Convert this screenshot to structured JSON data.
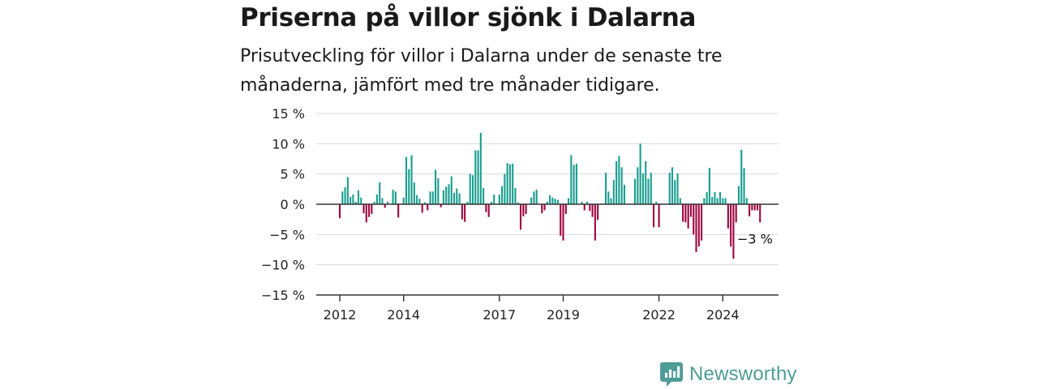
{
  "title": "Priserna på villor sjönk i Dalarna",
  "subtitle": "Prisutveckling för villor i Dalarna under de senaste tre månaderna, jämfört med tre månader tidigare.",
  "brand": {
    "name": "Newsworthy",
    "color": "#4f9c96"
  },
  "chart_data": {
    "type": "bar",
    "ylim": [
      -15,
      15
    ],
    "yticks": [
      15,
      10,
      5,
      0,
      -5,
      -10,
      -15
    ],
    "ytick_labels": [
      "15 %",
      "10 %",
      "5 %",
      "0 %",
      "−5 %",
      "−10 %",
      "−15 %"
    ],
    "xticks": [
      {
        "label": "2012",
        "index": 0
      },
      {
        "label": "2014",
        "index": 24
      },
      {
        "label": "2017",
        "index": 60
      },
      {
        "label": "2019",
        "index": 84
      },
      {
        "label": "2022",
        "index": 120
      },
      {
        "label": "2024",
        "index": 144
      }
    ],
    "start": "2012-01",
    "frequency": "monthly",
    "positive_color": "#1a9e8f",
    "negative_color": "#a0063f",
    "grid": true,
    "end_label": "−3 %",
    "values": [
      -2.3,
      2.1,
      2.8,
      4.5,
      1.2,
      1.6,
      0.4,
      2.3,
      1.1,
      -1.5,
      -3.0,
      -2.1,
      -1.6,
      0.4,
      1.6,
      3.6,
      1.0,
      -0.6,
      0.4,
      0.0,
      2.4,
      2.1,
      -2.2,
      0.0,
      1.1,
      7.8,
      5.8,
      8.1,
      3.6,
      1.5,
      0.9,
      -1.4,
      0.3,
      -1.0,
      2.1,
      2.1,
      5.7,
      4.3,
      -0.5,
      2.3,
      2.9,
      3.3,
      4.6,
      1.9,
      2.6,
      1.8,
      -2.5,
      -2.9,
      0.4,
      5.0,
      4.8,
      8.9,
      8.9,
      11.8,
      2.7,
      -1.3,
      -2.1,
      0.4,
      1.6,
      0.0,
      1.6,
      3.0,
      5.0,
      6.8,
      6.6,
      6.7,
      2.7,
      0.3,
      -4.2,
      -2.0,
      -1.6,
      0.0,
      1.1,
      2.1,
      2.4,
      0.0,
      -1.5,
      -1.0,
      0.4,
      1.5,
      1.1,
      0.9,
      0.7,
      -5.2,
      -6.0,
      -1.6,
      1.0,
      8.1,
      6.5,
      6.7,
      0.0,
      0.4,
      -1.0,
      0.4,
      -1.1,
      -2.1,
      -6.0,
      -2.6,
      0.0,
      0.0,
      5.2,
      2.1,
      1.0,
      4.0,
      7.1,
      8.0,
      6.1,
      3.2,
      0.0,
      0.0,
      0.0,
      4.2,
      6.1,
      10.0,
      5.1,
      7.1,
      4.2,
      5.2,
      -3.8,
      0.4,
      -3.8,
      0.0,
      0.0,
      0.0,
      5.2,
      6.1,
      4.0,
      5.1,
      1.0,
      -2.9,
      -3.0,
      -4.0,
      -2.1,
      -5.0,
      -7.9,
      -7.0,
      -6.0,
      1.0,
      2.0,
      6.0,
      1.2,
      2.0,
      1.0,
      2.0,
      1.0,
      1.0,
      -4.0,
      -7.0,
      -9.0,
      -3.0,
      3.0,
      9.0,
      6.0,
      1.0,
      -2.0,
      -1.0,
      -1.0,
      -1.0,
      -3.0
    ]
  }
}
